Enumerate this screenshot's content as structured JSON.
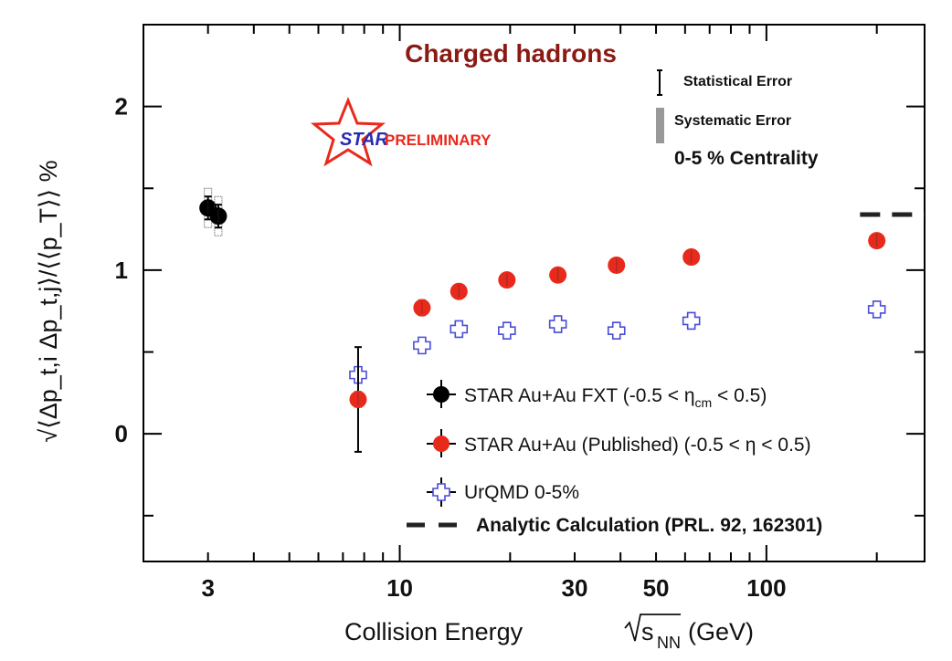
{
  "chart_data": {
    "type": "scatter",
    "title": "Charged hadrons",
    "xlabel": "Collision Energy",
    "xlabel_sqrt": "s",
    "xlabel_sub": "NN",
    "xlabel_unit": "(GeV)",
    "ylabel": "√⟨Δp_t,i Δp_t,j⟩/⟨⟨p_T⟩⟩ %",
    "xscale": "log",
    "xlim": [
      2,
      270
    ],
    "ylim": [
      -0.78,
      2.5
    ],
    "xticks": [
      {
        "value": 3,
        "label": "3"
      },
      {
        "value": 10,
        "label": "10"
      },
      {
        "value": 30,
        "label": "30"
      },
      {
        "value": 50,
        "label": "50"
      },
      {
        "value": 100,
        "label": "100"
      }
    ],
    "yticks": [
      {
        "value": 0,
        "label": "0"
      },
      {
        "value": 1,
        "label": "1"
      },
      {
        "value": 2,
        "label": "2"
      }
    ],
    "series": [
      {
        "name": "STAR Au+Au FXT",
        "color": "#000000",
        "marker": "circle",
        "points": [
          {
            "x": 3.0,
            "y": 1.38,
            "stat": 0.07,
            "sys": 0.12
          },
          {
            "x": 3.2,
            "y": 1.33,
            "stat": 0.07,
            "sys": 0.12
          }
        ]
      },
      {
        "name": "STAR Au+Au (Published)",
        "color": "#e8291c",
        "marker": "circle",
        "points": [
          {
            "x": 7.7,
            "y": 0.21,
            "stat": 0.32,
            "sys": 0.05
          },
          {
            "x": 11.5,
            "y": 0.77,
            "stat": 0.02,
            "sys": 0.05
          },
          {
            "x": 14.5,
            "y": 0.87,
            "stat": 0.02,
            "sys": 0.04
          },
          {
            "x": 19.6,
            "y": 0.94,
            "stat": 0.02,
            "sys": 0.03
          },
          {
            "x": 27,
            "y": 0.97,
            "stat": 0.02,
            "sys": 0.03
          },
          {
            "x": 39,
            "y": 1.03,
            "stat": 0.02,
            "sys": 0.03
          },
          {
            "x": 62.4,
            "y": 1.08,
            "stat": 0.02,
            "sys": 0.03
          },
          {
            "x": 200,
            "y": 1.18,
            "stat": 0.01,
            "sys": 0.02
          }
        ]
      },
      {
        "name": "UrQMD 0-5%",
        "color": "#4b4bd8",
        "marker": "cross",
        "points": [
          {
            "x": 7.7,
            "y": 0.36
          },
          {
            "x": 11.5,
            "y": 0.54
          },
          {
            "x": 14.5,
            "y": 0.64
          },
          {
            "x": 19.6,
            "y": 0.63
          },
          {
            "x": 27,
            "y": 0.67
          },
          {
            "x": 39,
            "y": 0.63
          },
          {
            "x": 62.4,
            "y": 0.69
          },
          {
            "x": 200,
            "y": 0.76
          }
        ]
      }
    ],
    "analytic_line": {
      "name": "Analytic Calculation (PRL. 92, 162301)",
      "y": 1.34,
      "x_from": 180,
      "x_to": 270
    },
    "legend": [
      {
        "prefix": "STAR Au+Au FXT (-0.5 < ",
        "eta": "η",
        "sub": "cm",
        "suffix": " < 0.5)"
      },
      {
        "prefix": "STAR Au+Au (Published) (-0.5 < ",
        "eta": "η",
        "sub": "",
        "suffix": " < 0.5)"
      },
      {
        "prefix": "UrQMD 0-5%",
        "eta": "",
        "sub": "",
        "suffix": ""
      },
      {
        "prefix": "Analytic Calculation (PRL. 92, 162301)",
        "eta": "",
        "sub": "",
        "suffix": ""
      }
    ],
    "annotations": {
      "statistical": "Statistical Error",
      "systematic": "Systematic Error",
      "centrality": "0-5 % Centrality",
      "star": "STAR",
      "preliminary": "PRELIMINARY"
    }
  }
}
